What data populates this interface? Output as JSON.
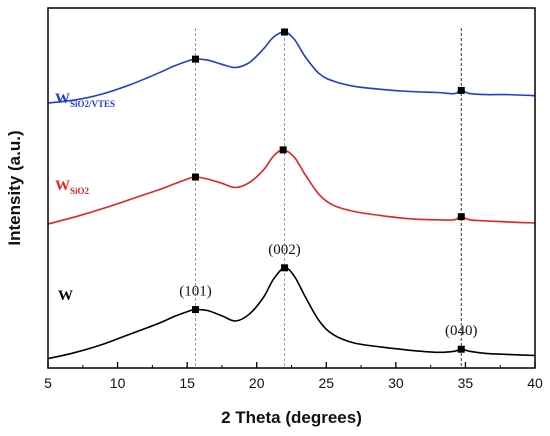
{
  "chart_data": {
    "type": "line",
    "xlabel": "2 Theta (degrees)",
    "ylabel": "Intensity (a.u.)",
    "xlim": [
      5,
      40
    ],
    "xticks": [
      5,
      10,
      15,
      20,
      25,
      30,
      35,
      40
    ],
    "y_ticks_shown": false,
    "grid": false,
    "reference_lines_x": [
      15.6,
      22.0,
      34.7
    ],
    "peak_labels": [
      {
        "text": "(101)",
        "x": 15.6
      },
      {
        "text": "(002)",
        "x": 22.0
      },
      {
        "text": "(040)",
        "x": 34.7
      }
    ],
    "series": [
      {
        "name": "W",
        "name_main": "W",
        "name_sub": "",
        "color": "#000000",
        "x": [
          5,
          7,
          9,
          11,
          13,
          14,
          15,
          15.6,
          16.5,
          17.5,
          18.5,
          19.5,
          20.5,
          21.2,
          22.0,
          22.7,
          23.5,
          24.5,
          25.5,
          27,
          29,
          31,
          33,
          34.2,
          34.7,
          35.3,
          36.5,
          38,
          40
        ],
        "y": [
          0.09,
          0.15,
          0.23,
          0.33,
          0.43,
          0.49,
          0.54,
          0.56,
          0.55,
          0.5,
          0.45,
          0.52,
          0.68,
          0.85,
          0.96,
          0.88,
          0.68,
          0.45,
          0.32,
          0.24,
          0.2,
          0.17,
          0.15,
          0.16,
          0.18,
          0.16,
          0.14,
          0.13,
          0.12
        ],
        "markers_x": [
          15.6,
          22.0,
          34.7
        ],
        "markers_y": [
          0.56,
          0.96,
          0.18
        ]
      },
      {
        "name": "WSiO2",
        "name_main": "W",
        "name_sub": "SiO2",
        "color": "#e8231c",
        "x": [
          5,
          7,
          9,
          11,
          13,
          14,
          15,
          15.6,
          16.5,
          17.5,
          18.5,
          19.5,
          20.5,
          21.2,
          21.9,
          22.7,
          23.5,
          24.5,
          25.5,
          27,
          29,
          31,
          33,
          34.2,
          34.7,
          35.3,
          36.5,
          38,
          40
        ],
        "y": [
          1.38,
          1.45,
          1.53,
          1.62,
          1.71,
          1.76,
          1.81,
          1.83,
          1.81,
          1.77,
          1.73,
          1.78,
          1.9,
          2.03,
          2.09,
          2.02,
          1.85,
          1.66,
          1.56,
          1.5,
          1.46,
          1.43,
          1.42,
          1.42,
          1.45,
          1.42,
          1.41,
          1.4,
          1.39
        ],
        "markers_x": [
          15.6,
          21.9,
          34.7
        ],
        "markers_y": [
          1.83,
          2.09,
          1.45
        ]
      },
      {
        "name": "WSiO2/VTES",
        "name_main": "W",
        "name_sub": "SiO2/VTES",
        "color": "#1f3bd8",
        "x": [
          5,
          7,
          9,
          11,
          13,
          14,
          15,
          15.6,
          16.5,
          17.5,
          18.5,
          19.5,
          20.5,
          21.2,
          22.0,
          22.7,
          23.5,
          24.5,
          25.5,
          27,
          29,
          31,
          33,
          34.2,
          34.7,
          35.3,
          36.5,
          38,
          40
        ],
        "y": [
          2.54,
          2.57,
          2.63,
          2.72,
          2.83,
          2.89,
          2.94,
          2.96,
          2.95,
          2.91,
          2.88,
          2.93,
          3.06,
          3.17,
          3.22,
          3.15,
          2.98,
          2.82,
          2.75,
          2.7,
          2.67,
          2.65,
          2.64,
          2.63,
          2.66,
          2.63,
          2.62,
          2.62,
          2.61
        ],
        "markers_x": [
          15.6,
          22.0,
          34.7
        ],
        "markers_y": [
          2.96,
          3.22,
          2.66
        ]
      }
    ]
  }
}
